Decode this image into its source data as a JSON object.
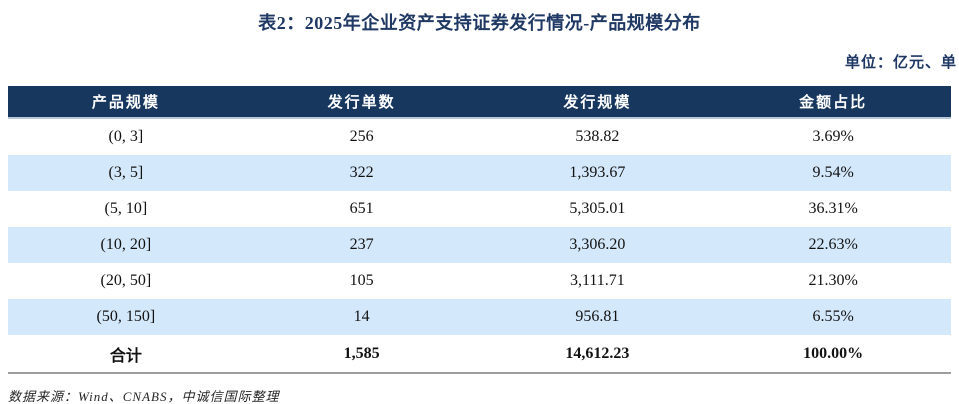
{
  "title": "表2：2025年企业资产支持证券发行情况-产品规模分布",
  "unit_note": "单位：亿元、单",
  "table": {
    "columns": [
      "产品规模",
      "发行单数",
      "发行规模",
      "金额占比"
    ],
    "rows": [
      [
        "(0, 3]",
        "256",
        "538.82",
        "3.69%"
      ],
      [
        "(3, 5]",
        "322",
        "1,393.67",
        "9.54%"
      ],
      [
        "(5, 10]",
        "651",
        "5,305.01",
        "36.31%"
      ],
      [
        "(10, 20]",
        "237",
        "3,306.20",
        "22.63%"
      ],
      [
        "(20, 50]",
        "105",
        "3,111.71",
        "21.30%"
      ],
      [
        "(50, 150]",
        "14",
        "956.81",
        "6.55%"
      ]
    ],
    "total_row": [
      "合计",
      "1,585",
      "14,612.23",
      "100.00%"
    ]
  },
  "source_note": "数据来源：Wind、CNABS，中诚信国际整理",
  "colors": {
    "header_bg": "#17375e",
    "header_text": "#ffffff",
    "row_alt_bg": "#d4e8fb",
    "title_text": "#1f3864",
    "header_underline": "#b6c8da",
    "table_bottom_border": "#9d9d9d"
  }
}
